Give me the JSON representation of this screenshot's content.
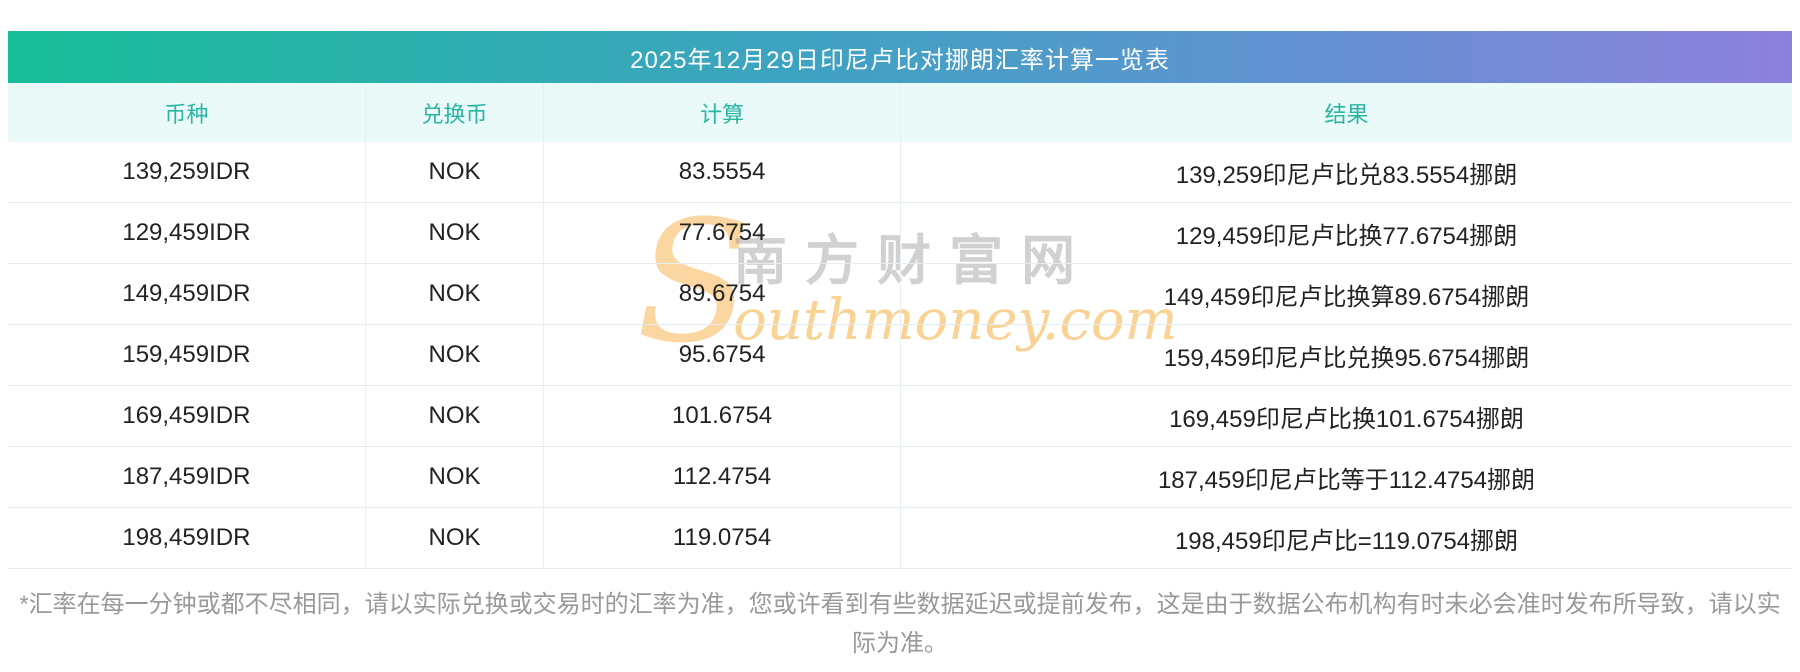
{
  "page": {
    "title": "2025年12月29日印尼卢比对挪朗汇率计算一览表",
    "footnote": "*汇率在每一分钟或都不尽相同，请以实际兑换或交易时的汇率为准，您或许看到有些数据延迟或提前发布，这是由于数据公布机构有时未必会准时发布所导致，请以实际为准。"
  },
  "table": {
    "headers": [
      "币种",
      "兑换币",
      "计算",
      "结果"
    ],
    "rows": [
      {
        "currency": "139,259IDR",
        "exchange_currency": "NOK",
        "calculation": "83.5554",
        "result": "139,259印尼卢比兑83.5554挪朗"
      },
      {
        "currency": "129,459IDR",
        "exchange_currency": "NOK",
        "calculation": "77.6754",
        "result": "129,459印尼卢比换77.6754挪朗"
      },
      {
        "currency": "149,459IDR",
        "exchange_currency": "NOK",
        "calculation": "89.6754",
        "result": "149,459印尼卢比换算89.6754挪朗"
      },
      {
        "currency": "159,459IDR",
        "exchange_currency": "NOK",
        "calculation": "95.6754",
        "result": "159,459印尼卢比兑换95.6754挪朗"
      },
      {
        "currency": "169,459IDR",
        "exchange_currency": "NOK",
        "calculation": "101.6754",
        "result": "169,459印尼卢比换101.6754挪朗"
      },
      {
        "currency": "187,459IDR",
        "exchange_currency": "NOK",
        "calculation": "112.4754",
        "result": "187,459印尼卢比等于112.4754挪朗"
      },
      {
        "currency": "198,459IDR",
        "exchange_currency": "NOK",
        "calculation": "119.0754",
        "result": "198,459印尼卢比=119.0754挪朗"
      }
    ]
  },
  "watermark": {
    "initial": "S",
    "cn_text": "南方财富网",
    "en_text": "outhmoney.com"
  },
  "colors": {
    "title_gradient_start": "#17bd97",
    "title_gradient_mid": "#3fa2c2",
    "title_gradient_end": "#8d80dc",
    "header_bg": "#e9faf8",
    "header_text": "#2bb5a3",
    "body_text": "#222222",
    "row_border": "#e3edf5",
    "footnote_text": "#999999",
    "watermark_orange": "#f6ad3c",
    "watermark_gray": "#989898"
  }
}
